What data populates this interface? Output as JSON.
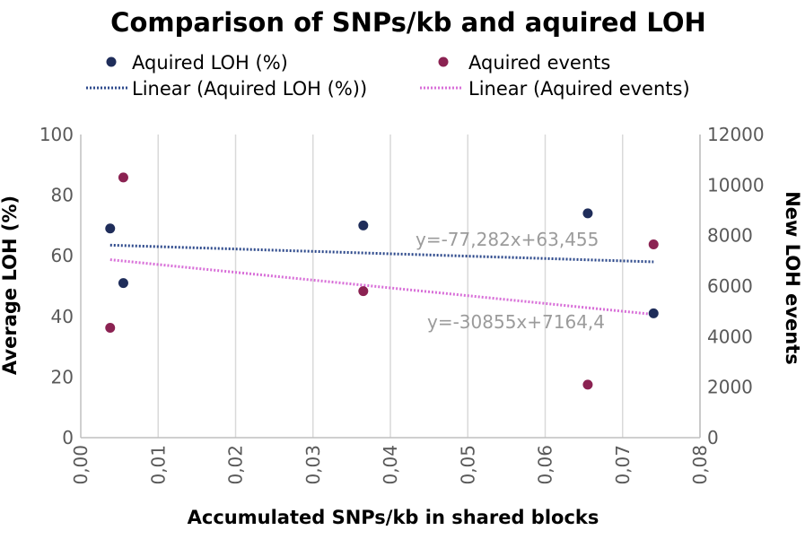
{
  "chart_data": {
    "type": "scatter",
    "title": "Comparison of SNPs/kb and aquired LOH",
    "xlabel": "Accumulated SNPs/kb in shared blocks",
    "ylabel": "Average LOH (%)",
    "y2label": "New LOH events",
    "xlim": [
      0,
      0.08
    ],
    "ylim": [
      0,
      100
    ],
    "y2lim": [
      0,
      12000
    ],
    "x_ticks": [
      "0,00",
      "0,01",
      "0,02",
      "0,03",
      "0,04",
      "0,05",
      "0,06",
      "0,07",
      "0,08"
    ],
    "y_ticks": [
      "0",
      "20",
      "40",
      "60",
      "80",
      "100"
    ],
    "y2_ticks": [
      "0",
      "2000",
      "4000",
      "6000",
      "8000",
      "10000",
      "12000"
    ],
    "grid": "vertical",
    "series": [
      {
        "name": "Aquired LOH (%)",
        "axis": "left",
        "color": "#1f2d5a",
        "points": [
          {
            "x": 0.0038,
            "y": 69
          },
          {
            "x": 0.0055,
            "y": 51
          },
          {
            "x": 0.0365,
            "y": 70
          },
          {
            "x": 0.0655,
            "y": 74
          },
          {
            "x": 0.074,
            "y": 41
          }
        ]
      },
      {
        "name": "Aquired events",
        "axis": "right",
        "color": "#8b2252",
        "points": [
          {
            "x": 0.0038,
            "y": 4350
          },
          {
            "x": 0.0055,
            "y": 10300
          },
          {
            "x": 0.0365,
            "y": 5800
          },
          {
            "x": 0.0655,
            "y": 2100
          },
          {
            "x": 0.074,
            "y": 7650
          }
        ]
      }
    ],
    "trendlines": [
      {
        "name": "Linear (Aquired LOH (%))",
        "axis": "left",
        "color": "#2e4a8c",
        "x_range": [
          0.0038,
          0.074
        ],
        "y_range": [
          63.5,
          58.0
        ],
        "equation": "y=-77,282x+63,455"
      },
      {
        "name": "Linear (Aquired events)",
        "axis": "right",
        "color": "#d86fd8",
        "x_range": [
          0.0038,
          0.074
        ],
        "y_range": [
          7045,
          4880
        ],
        "equation": "y=-30855x+7164,4"
      }
    ]
  }
}
